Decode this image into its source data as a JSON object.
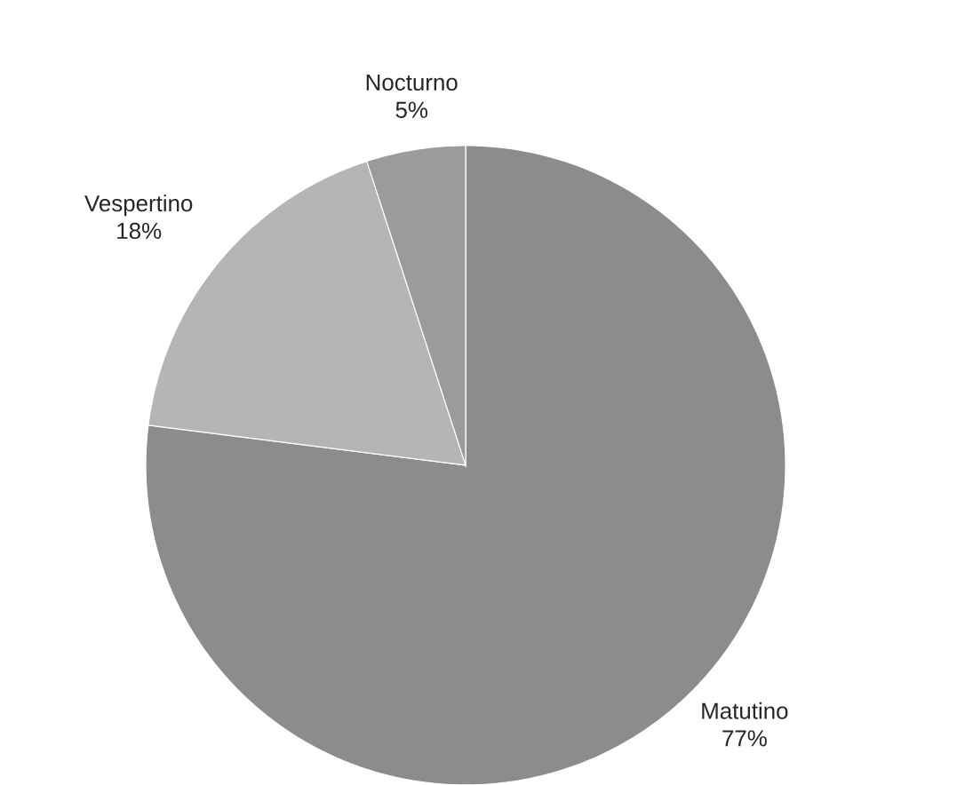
{
  "chart_data": {
    "type": "pie",
    "categories": [
      "Matutino",
      "Vespertino",
      "Nocturno"
    ],
    "values": [
      77,
      18,
      5
    ],
    "value_labels": [
      "77%",
      "18%",
      "5%"
    ],
    "colors": [
      "#8c8c8c",
      "#b5b5b5",
      "#9b9b9b"
    ]
  }
}
